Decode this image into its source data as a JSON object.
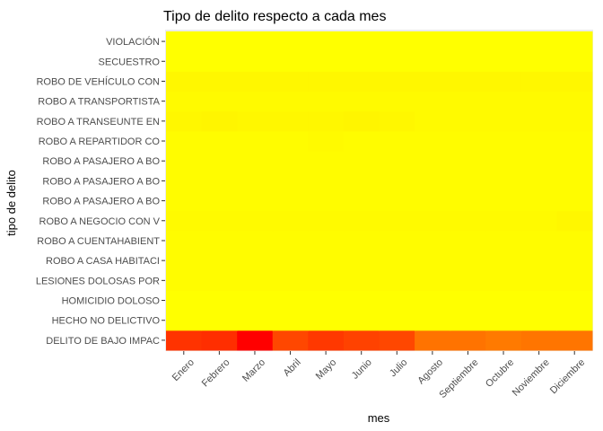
{
  "chart_data": {
    "type": "heatmap",
    "title": "Tipo de delito respecto a cada mes",
    "xlabel": "mes",
    "ylabel": "tipo de delito",
    "x": [
      "Enero",
      "Febrero",
      "Marzo",
      "Abril",
      "Mayo",
      "Junio",
      "Julio",
      "Agosto",
      "Septiembre",
      "Octubre",
      "Noviembre",
      "Diciembre"
    ],
    "y": [
      "DELITO DE BAJO IMPAC",
      "HECHO NO DELICTIVO",
      "HOMICIDIO DOLOSO",
      "LESIONES DOLOSAS POR",
      "ROBO A CASA HABITACI",
      "ROBO A CUENTAHABIENT",
      "ROBO A NEGOCIO CON V",
      "ROBO A PASAJERO A BO",
      "ROBO A PASAJERO A BO",
      "ROBO A PASAJERO A BO",
      "ROBO A REPARTIDOR CO",
      "ROBO A TRANSEUNTE EN",
      "ROBO A TRANSPORTISTA",
      "ROBO DE VEHÍCULO CON",
      "SECUESTRO",
      "VIOLACIÓN"
    ],
    "values": [
      [
        0.8,
        0.82,
        1.0,
        0.72,
        0.78,
        0.74,
        0.72,
        0.55,
        0.55,
        0.52,
        0.54,
        0.54
      ],
      [
        0.0,
        0.0,
        0.0,
        0.0,
        0.0,
        0.0,
        0.0,
        0.0,
        0.0,
        0.0,
        0.0,
        0.0
      ],
      [
        0.0,
        0.0,
        0.0,
        0.0,
        0.0,
        0.0,
        0.0,
        0.0,
        0.0,
        0.0,
        0.0,
        0.0
      ],
      [
        0.01,
        0.01,
        0.01,
        0.01,
        0.01,
        0.01,
        0.01,
        0.01,
        0.01,
        0.01,
        0.01,
        0.01
      ],
      [
        0.01,
        0.01,
        0.01,
        0.01,
        0.01,
        0.01,
        0.01,
        0.01,
        0.01,
        0.01,
        0.01,
        0.01
      ],
      [
        0.01,
        0.01,
        0.01,
        0.01,
        0.01,
        0.01,
        0.01,
        0.01,
        0.01,
        0.01,
        0.01,
        0.01
      ],
      [
        0.02,
        0.02,
        0.02,
        0.02,
        0.02,
        0.02,
        0.02,
        0.02,
        0.02,
        0.02,
        0.02,
        0.03
      ],
      [
        0.01,
        0.01,
        0.01,
        0.01,
        0.01,
        0.01,
        0.01,
        0.01,
        0.01,
        0.01,
        0.01,
        0.01
      ],
      [
        0.01,
        0.01,
        0.01,
        0.01,
        0.01,
        0.01,
        0.01,
        0.01,
        0.01,
        0.01,
        0.01,
        0.01
      ],
      [
        0.01,
        0.01,
        0.01,
        0.01,
        0.01,
        0.01,
        0.01,
        0.01,
        0.01,
        0.01,
        0.01,
        0.01
      ],
      [
        0.01,
        0.01,
        0.01,
        0.01,
        0.02,
        0.01,
        0.01,
        0.01,
        0.01,
        0.01,
        0.01,
        0.01
      ],
      [
        0.03,
        0.04,
        0.03,
        0.03,
        0.03,
        0.04,
        0.03,
        0.02,
        0.02,
        0.02,
        0.02,
        0.02
      ],
      [
        0.02,
        0.02,
        0.02,
        0.02,
        0.02,
        0.02,
        0.02,
        0.02,
        0.02,
        0.02,
        0.02,
        0.02
      ],
      [
        0.03,
        0.03,
        0.03,
        0.03,
        0.03,
        0.03,
        0.03,
        0.03,
        0.03,
        0.03,
        0.03,
        0.03
      ],
      [
        0.0,
        0.0,
        0.0,
        0.0,
        0.0,
        0.0,
        0.0,
        0.0,
        0.0,
        0.0,
        0.0,
        0.0
      ],
      [
        0.0,
        0.0,
        0.0,
        0.0,
        0.0,
        0.0,
        0.0,
        0.0,
        0.0,
        0.0,
        0.0,
        0.0
      ]
    ],
    "color_scale": {
      "low": "#ffff00",
      "high": "#ff0000"
    },
    "legend": "none",
    "grid": false
  }
}
